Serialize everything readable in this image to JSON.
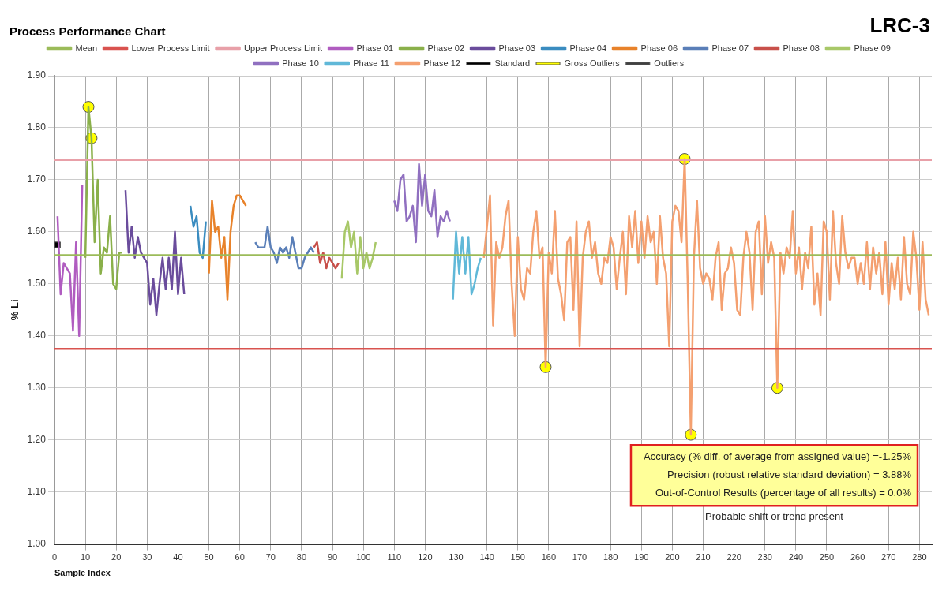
{
  "chart_data": {
    "type": "line",
    "title": "Process Performance Chart",
    "subtitle": "LRC-3",
    "xlabel": "Sample Index",
    "ylabel": "% Li",
    "xlim": [
      0,
      284
    ],
    "xticks": [
      0,
      10,
      20,
      30,
      40,
      50,
      60,
      70,
      80,
      90,
      100,
      110,
      120,
      130,
      140,
      150,
      160,
      170,
      180,
      190,
      200,
      210,
      220,
      230,
      240,
      250,
      260,
      270,
      280
    ],
    "ylim": [
      1,
      1.9
    ],
    "yticks": [
      {
        "value": 1,
        "label": "1.00"
      },
      {
        "value": 1.1,
        "label": "1.10"
      },
      {
        "value": 1.2,
        "label": "1.20"
      },
      {
        "value": 1.3,
        "label": "1.30"
      },
      {
        "value": 1.4,
        "label": "1.40"
      },
      {
        "value": 1.5,
        "label": "1.50"
      },
      {
        "value": 1.6,
        "label": "1.60"
      },
      {
        "value": 1.7,
        "label": "1.70"
      },
      {
        "value": 1.8,
        "label": "1.80"
      },
      {
        "value": 1.9,
        "label": "1.90"
      }
    ],
    "grid": true,
    "legend": "top",
    "marker": "none",
    "line_style": "solid",
    "series": [
      {
        "name": "Mean",
        "color": "#9bbb59",
        "x": [
          0,
          284
        ],
        "values": [
          1.555,
          1.555
        ]
      },
      {
        "name": "Lower Process Limit",
        "color": "#d9534f",
        "x": [
          0,
          284
        ],
        "values": [
          1.375,
          1.375
        ]
      },
      {
        "name": "Upper Process Limit",
        "color": "#e8a0a8",
        "x": [
          0,
          284
        ],
        "values": [
          1.738,
          1.738
        ]
      },
      {
        "name": "Phase 01",
        "color": "#b05cc0",
        "x": [
          1,
          2,
          3,
          4,
          5,
          6,
          7,
          8,
          9
        ],
        "values": [
          1.63,
          1.48,
          1.54,
          1.53,
          1.52,
          1.41,
          1.58,
          1.4,
          1.69
        ]
      },
      {
        "name": "Phase 02",
        "color": "#8ab04a",
        "x": [
          10,
          11,
          12,
          13,
          14,
          15,
          16,
          17,
          18,
          19,
          20,
          21,
          22
        ],
        "values": [
          1.55,
          1.84,
          1.78,
          1.58,
          1.7,
          1.52,
          1.57,
          1.56,
          1.63,
          1.5,
          1.49,
          1.56,
          1.56
        ]
      },
      {
        "name": "Phase 03",
        "color": "#6a4c9c",
        "x": [
          23,
          24,
          25,
          26,
          27,
          28,
          29,
          30,
          31,
          32,
          33,
          34,
          35,
          36,
          37,
          38,
          39,
          40,
          41,
          42
        ],
        "values": [
          1.68,
          1.56,
          1.61,
          1.55,
          1.59,
          1.56,
          1.55,
          1.54,
          1.46,
          1.51,
          1.44,
          1.5,
          1.55,
          1.49,
          1.55,
          1.49,
          1.6,
          1.48,
          1.55,
          1.48
        ]
      },
      {
        "name": "Phase 04",
        "color": "#3a8cc0",
        "x": [
          44,
          45,
          46,
          47,
          48,
          49
        ],
        "values": [
          1.65,
          1.61,
          1.63,
          1.56,
          1.55,
          1.62
        ]
      },
      {
        "name": "Phase 06",
        "color": "#e8822a",
        "x": [
          50,
          51,
          52,
          53,
          54,
          55,
          56,
          57,
          58,
          59,
          60,
          61,
          62
        ],
        "values": [
          1.52,
          1.66,
          1.6,
          1.61,
          1.55,
          1.59,
          1.47,
          1.6,
          1.65,
          1.67,
          1.67,
          1.66,
          1.65
        ]
      },
      {
        "name": "Phase 07",
        "color": "#5a7fb8",
        "x": [
          65,
          66,
          67,
          68,
          69,
          70,
          71,
          72,
          73,
          74,
          75,
          76,
          77,
          78,
          79,
          80,
          81,
          82,
          83,
          84
        ],
        "values": [
          1.58,
          1.57,
          1.57,
          1.57,
          1.61,
          1.57,
          1.56,
          1.54,
          1.57,
          1.56,
          1.57,
          1.55,
          1.59,
          1.56,
          1.53,
          1.53,
          1.55,
          1.56,
          1.57,
          1.56
        ]
      },
      {
        "name": "Phase 08",
        "color": "#c8504a",
        "x": [
          84,
          85,
          86,
          87,
          88,
          89,
          90,
          91,
          92
        ],
        "values": [
          1.57,
          1.58,
          1.54,
          1.56,
          1.53,
          1.55,
          1.54,
          1.53,
          1.54
        ]
      },
      {
        "name": "Phase 09",
        "color": "#a8c868",
        "x": [
          93,
          94,
          95,
          96,
          97,
          98,
          99,
          100,
          101,
          102,
          103,
          104
        ],
        "values": [
          1.51,
          1.6,
          1.62,
          1.57,
          1.6,
          1.52,
          1.59,
          1.53,
          1.56,
          1.53,
          1.55,
          1.58
        ]
      },
      {
        "name": "Phase 10",
        "color": "#9070c0",
        "x": [
          110,
          111,
          112,
          113,
          114,
          115,
          116,
          117,
          118,
          119,
          120,
          121,
          122,
          123,
          124,
          125,
          126,
          127,
          128
        ],
        "values": [
          1.66,
          1.64,
          1.7,
          1.71,
          1.62,
          1.63,
          1.65,
          1.58,
          1.73,
          1.65,
          1.71,
          1.64,
          1.63,
          1.68,
          1.59,
          1.63,
          1.62,
          1.64,
          1.62
        ]
      },
      {
        "name": "Phase 11",
        "color": "#60b8d8",
        "x": [
          129,
          130,
          131,
          132,
          133,
          134,
          135,
          136,
          137,
          138
        ],
        "values": [
          1.47,
          1.6,
          1.52,
          1.59,
          1.52,
          1.59,
          1.48,
          1.5,
          1.53,
          1.55
        ]
      },
      {
        "name": "Phase 12",
        "color": "#f4a070",
        "x": [
          139,
          140,
          141,
          142,
          143,
          144,
          145,
          146,
          147,
          148,
          149,
          150,
          151,
          152,
          153,
          154,
          155,
          156,
          157,
          158,
          159,
          160,
          161,
          162,
          163,
          164,
          165,
          166,
          167,
          168,
          169,
          170,
          171,
          172,
          173,
          174,
          175,
          176,
          177,
          178,
          179,
          180,
          181,
          182,
          183,
          184,
          185,
          186,
          187,
          188,
          189,
          190,
          191,
          192,
          193,
          194,
          195,
          196,
          197,
          198,
          199,
          200,
          201,
          202,
          203,
          204,
          205,
          206,
          207,
          208,
          209,
          210,
          211,
          212,
          213,
          214,
          215,
          216,
          217,
          218,
          219,
          220,
          221,
          222,
          223,
          224,
          225,
          226,
          227,
          228,
          229,
          230,
          231,
          232,
          233,
          234,
          235,
          236,
          237,
          238,
          239,
          240,
          241,
          242,
          243,
          244,
          245,
          246,
          247,
          248,
          249,
          250,
          251,
          252,
          253,
          254,
          255,
          256,
          257,
          258,
          259,
          260,
          261,
          262,
          263,
          264,
          265,
          266,
          267,
          268,
          269,
          270,
          271,
          272,
          273,
          274,
          275,
          276,
          277,
          278,
          279,
          280,
          281,
          282,
          283
        ],
        "values": [
          1.55,
          1.61,
          1.67,
          1.42,
          1.58,
          1.55,
          1.57,
          1.63,
          1.66,
          1.5,
          1.4,
          1.59,
          1.49,
          1.47,
          1.53,
          1.52,
          1.6,
          1.64,
          1.55,
          1.57,
          1.34,
          1.56,
          1.52,
          1.64,
          1.51,
          1.48,
          1.43,
          1.58,
          1.59,
          1.45,
          1.62,
          1.38,
          1.55,
          1.6,
          1.62,
          1.55,
          1.58,
          1.52,
          1.5,
          1.55,
          1.54,
          1.59,
          1.57,
          1.49,
          1.55,
          1.6,
          1.48,
          1.63,
          1.57,
          1.64,
          1.54,
          1.62,
          1.55,
          1.63,
          1.58,
          1.6,
          1.5,
          1.63,
          1.55,
          1.52,
          1.38,
          1.62,
          1.65,
          1.64,
          1.58,
          1.74,
          1.5,
          1.21,
          1.55,
          1.66,
          1.53,
          1.5,
          1.52,
          1.51,
          1.47,
          1.55,
          1.58,
          1.45,
          1.52,
          1.53,
          1.57,
          1.54,
          1.45,
          1.44,
          1.55,
          1.6,
          1.56,
          1.45,
          1.6,
          1.62,
          1.48,
          1.63,
          1.54,
          1.58,
          1.55,
          1.3,
          1.56,
          1.52,
          1.57,
          1.55,
          1.64,
          1.52,
          1.57,
          1.49,
          1.56,
          1.53,
          1.61,
          1.46,
          1.52,
          1.44,
          1.62,
          1.6,
          1.47,
          1.64,
          1.54,
          1.5,
          1.63,
          1.56,
          1.53,
          1.55,
          1.55,
          1.5,
          1.54,
          1.5,
          1.58,
          1.49,
          1.57,
          1.52,
          1.56,
          1.48,
          1.58,
          1.46,
          1.54,
          1.49,
          1.55,
          1.47,
          1.59,
          1.5,
          1.48,
          1.6,
          1.55,
          1.45,
          1.58,
          1.47,
          1.44
        ]
      },
      {
        "name": "Standard",
        "type": "scatter",
        "marker": "square",
        "color": "#000000",
        "x": [
          1
        ],
        "values": [
          1.575
        ]
      },
      {
        "name": "Gross Outliers",
        "type": "scatter",
        "marker": "circle",
        "color": "#ffff00",
        "x": [
          11,
          12,
          159,
          204,
          206,
          234
        ],
        "values": [
          1.84,
          1.78,
          1.34,
          1.74,
          1.21,
          1.3
        ]
      },
      {
        "name": "Outliers",
        "type": "scatter",
        "marker": "square",
        "color": "#404040"
      }
    ],
    "annotations": [
      "Accuracy (% diff. of average from assigned value) =-1.25%",
      "Precision (robust relative standard deviation) = 3.88%",
      "Out-of-Control Results (percentage of all results) = 0.0%",
      "Probable shift or trend present"
    ]
  }
}
